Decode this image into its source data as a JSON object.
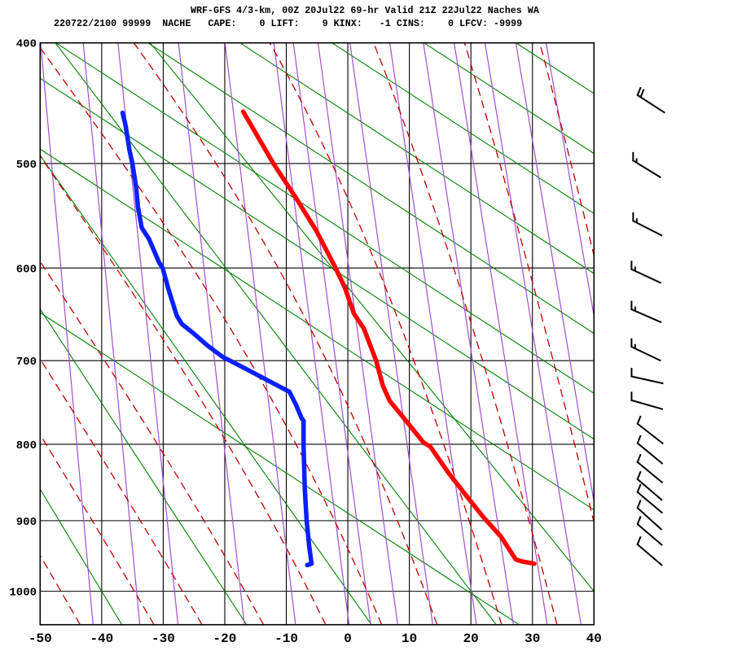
{
  "header": {
    "title_line1": "WRF-GFS 4/3-km, 00Z 20Jul22 69-hr Valid 21Z 22Jul22 Naches WA",
    "title_line2": "220722/2100 99999  NACHE   CAPE:    0 LIFT:    9 KINX:   -1 CINS:    0 LFCV: -9999"
  },
  "chart_data": {
    "type": "line",
    "subtype": "stuve_sounding",
    "x_axis": {
      "ticks": [
        -50,
        -40,
        -30,
        -20,
        -10,
        0,
        10,
        20,
        30,
        40
      ],
      "range": [
        -50,
        40
      ],
      "unit": "C"
    },
    "y_axis": {
      "ticks": [
        400,
        500,
        600,
        700,
        800,
        900,
        1000
      ],
      "range": [
        400,
        1050
      ],
      "unit": "hPa",
      "scale_exponent": 0.2857
    },
    "temperature_profile": [
      [
        455,
        -17.0
      ],
      [
        500,
        -12.1
      ],
      [
        530,
        -8.6
      ],
      [
        563,
        -5.1
      ],
      [
        600,
        -2.0
      ],
      [
        620,
        -0.5
      ],
      [
        648,
        1.0
      ],
      [
        664,
        2.6
      ],
      [
        700,
        4.6
      ],
      [
        729,
        5.7
      ],
      [
        747,
        6.8
      ],
      [
        765,
        8.8
      ],
      [
        798,
        12.3
      ],
      [
        803,
        13.4
      ],
      [
        838,
        16.5
      ],
      [
        870,
        19.6
      ],
      [
        895,
        22.0
      ],
      [
        922,
        24.9
      ],
      [
        942,
        26.4
      ],
      [
        954,
        27.3
      ],
      [
        957,
        28.4
      ],
      [
        960,
        30.3
      ]
    ],
    "dewpoint_profile": [
      [
        456,
        -36.6
      ],
      [
        467,
        -36.1
      ],
      [
        488,
        -35.5
      ],
      [
        500,
        -35.0
      ],
      [
        522,
        -34.4
      ],
      [
        540,
        -34.1
      ],
      [
        560,
        -33.5
      ],
      [
        571,
        -32.3
      ],
      [
        594,
        -30.7
      ],
      [
        600,
        -30.1
      ],
      [
        621,
        -29.2
      ],
      [
        650,
        -27.8
      ],
      [
        659,
        -27.0
      ],
      [
        671,
        -24.8
      ],
      [
        683,
        -22.8
      ],
      [
        696,
        -20.3
      ],
      [
        701,
        -18.9
      ],
      [
        710,
        -16.4
      ],
      [
        721,
        -13.5
      ],
      [
        732,
        -10.6
      ],
      [
        736,
        -9.5
      ],
      [
        752,
        -8.4
      ],
      [
        768,
        -7.5
      ],
      [
        771,
        -7.2
      ],
      [
        800,
        -7.2
      ],
      [
        857,
        -7.0
      ],
      [
        900,
        -6.7
      ],
      [
        934,
        -6.3
      ],
      [
        960,
        -5.9
      ],
      [
        962,
        -6.6
      ]
    ],
    "mixing_ratio_lines_bottom_tempC": [
      -41.4,
      -33.8,
      -27.6,
      -16.8,
      -8.5,
      0.2,
      3.7,
      8.1,
      13.8,
      20.9,
      26.9,
      32.4,
      37.9,
      43.4,
      48.8
    ],
    "dry_adiabats_thetaK": [
      233.15,
      253.15,
      273.15,
      293.15,
      313.15
    ],
    "moist_adiabats_startC_at1050": [
      -53.5,
      -43.5,
      -31.5,
      -23.7,
      -13.7,
      -3.6,
      5.5,
      14.5,
      25,
      34,
      44,
      54
    ],
    "aux_green_lines": {
      "top_tempC": [
        -117.3,
        -76.5,
        -58.85,
        -47.43,
        -32.47,
        -17.52,
        -2.56,
        12.39,
        27.35
      ],
      "slope_dy_dx": 0.652
    },
    "wind_barbs": [
      {
        "p": 441,
        "kt": 20,
        "angle": 33
      },
      {
        "p": 497,
        "kt": 15,
        "angle": 31.5
      },
      {
        "p": 553,
        "kt": 15,
        "angle": 27
      },
      {
        "p": 601,
        "kt": 15,
        "angle": 25
      },
      {
        "p": 643,
        "kt": 15,
        "angle": 23.5
      },
      {
        "p": 684,
        "kt": 15,
        "angle": 25.5
      },
      {
        "p": 718,
        "kt": 10,
        "angle": 12.5
      },
      {
        "p": 746,
        "kt": 10,
        "angle": 16
      },
      {
        "p": 774,
        "kt": 10,
        "angle": 38
      },
      {
        "p": 798,
        "kt": 10,
        "angle": 39.5
      },
      {
        "p": 822,
        "kt": 10,
        "angle": 39.5
      },
      {
        "p": 844,
        "kt": 10,
        "angle": 40.5
      },
      {
        "p": 861,
        "kt": 10,
        "angle": 40
      },
      {
        "p": 882,
        "kt": 10,
        "angle": 42
      },
      {
        "p": 904,
        "kt": 10,
        "angle": 40.5
      },
      {
        "p": 932,
        "kt": 10,
        "angle": 40.5
      }
    ],
    "colors": {
      "grid": "#000000",
      "mixing_ratio": "#A050D0",
      "adiabat_green": "#008000",
      "moist_adiabat": "#C00000",
      "temperature": "#FF0000",
      "dewpoint": "#0820FF",
      "wind_barb": "#000000"
    }
  }
}
